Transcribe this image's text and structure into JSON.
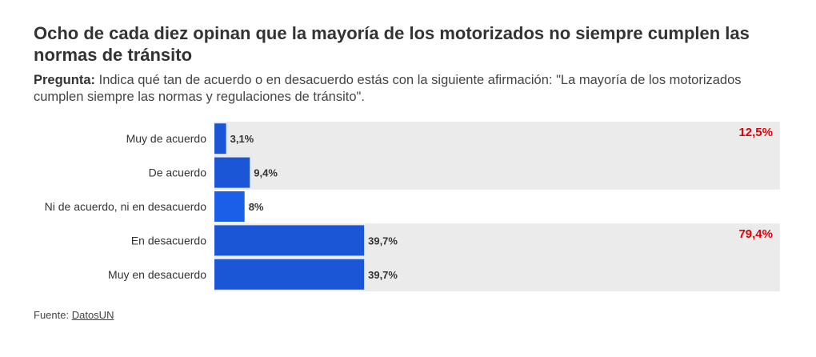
{
  "header": {
    "title": "Ocho de cada diez opinan que la mayoría de los motorizados no siempre cumplen las normas de tránsito",
    "question_label": "Pregunta:",
    "question_text": "Indica qué tan de acuerdo o en desacuerdo estás con la siguiente afirmación: \"La mayoría de los motorizados cumplen siempre las normas y regulaciones de tránsito\"."
  },
  "chart_data": {
    "type": "bar",
    "orientation": "horizontal",
    "categories": [
      "Muy de acuerdo",
      "De acuerdo",
      "Ni de acuerdo, ni en desacuerdo",
      "En desacuerdo",
      "Muy en desacuerdo"
    ],
    "values": [
      3.1,
      9.4,
      8,
      39.7,
      39.7
    ],
    "value_labels": [
      "3,1%",
      "9,4%",
      "8%",
      "39,7%",
      "39,7%"
    ],
    "xlim": [
      0,
      150
    ],
    "grid": false,
    "groups": [
      {
        "categories": [
          "Muy de acuerdo",
          "De acuerdo"
        ],
        "total_label": "12,5%"
      },
      {
        "categories": [
          "En desacuerdo",
          "Muy en desacuerdo"
        ],
        "total_label": "79,4%"
      }
    ],
    "colors": {
      "bar": "#1a56d6",
      "bar_neutral": "#1b5ee8",
      "group_background": "#ebebeb",
      "total_label": "#e0000a"
    }
  },
  "footer": {
    "source_label": "Fuente:",
    "source_link": "DatosUN"
  }
}
